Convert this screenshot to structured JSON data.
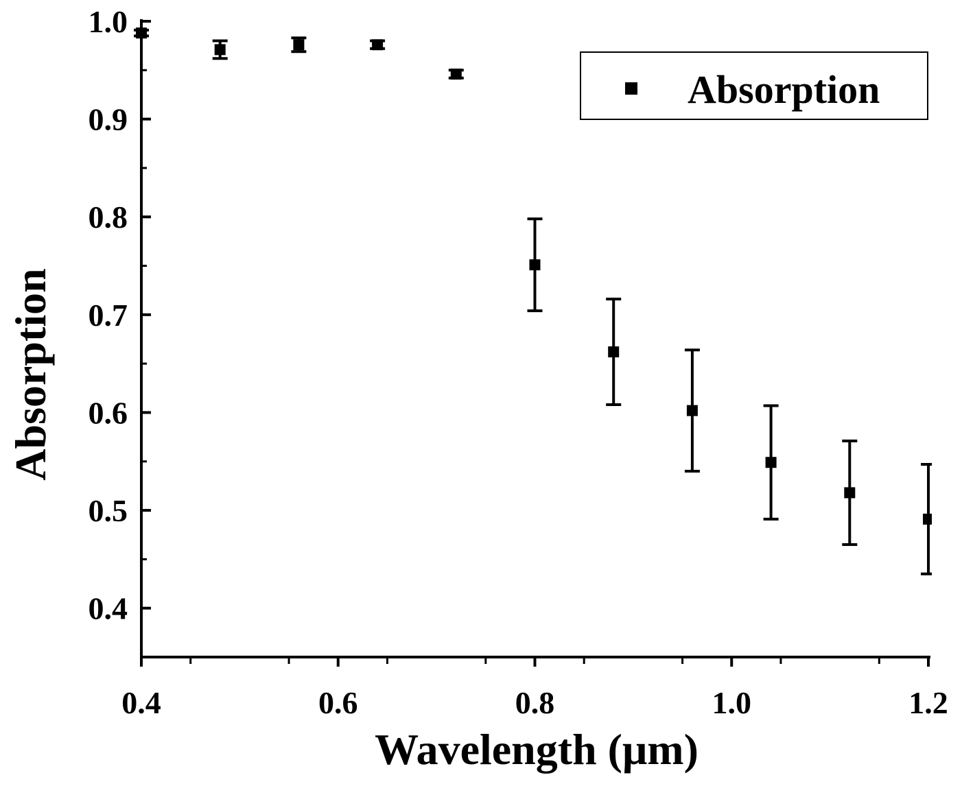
{
  "chart_data": {
    "type": "scatter",
    "title": "",
    "xlabel": "Wavelength (μm)",
    "ylabel": "Absorption",
    "xlim": [
      0.4,
      1.2
    ],
    "ylim": [
      0.35,
      1.0
    ],
    "x_ticks": [
      0.4,
      0.6,
      0.8,
      1.0,
      1.2
    ],
    "x_tick_labels": [
      "0.4",
      "0.6",
      "0.8",
      "1.0",
      "1.2"
    ],
    "y_ticks": [
      0.4,
      0.5,
      0.6,
      0.7,
      0.8,
      0.9,
      1.0
    ],
    "y_tick_labels": [
      "0.4",
      "0.5",
      "0.6",
      "0.7",
      "0.8",
      "0.9",
      "1.0"
    ],
    "legend": {
      "position": "top-right",
      "entries": [
        "Absorption"
      ]
    },
    "series": [
      {
        "name": "Absorption",
        "marker": "square",
        "x": [
          0.4,
          0.48,
          0.56,
          0.64,
          0.72,
          0.8,
          0.88,
          0.96,
          1.04,
          1.12,
          1.2
        ],
        "y": [
          0.988,
          0.971,
          0.976,
          0.976,
          0.946,
          0.751,
          0.662,
          0.602,
          0.549,
          0.518,
          0.491
        ],
        "error": [
          0.003,
          0.009,
          0.007,
          0.004,
          0.004,
          0.047,
          0.054,
          0.062,
          0.058,
          0.053,
          0.056
        ]
      }
    ]
  }
}
